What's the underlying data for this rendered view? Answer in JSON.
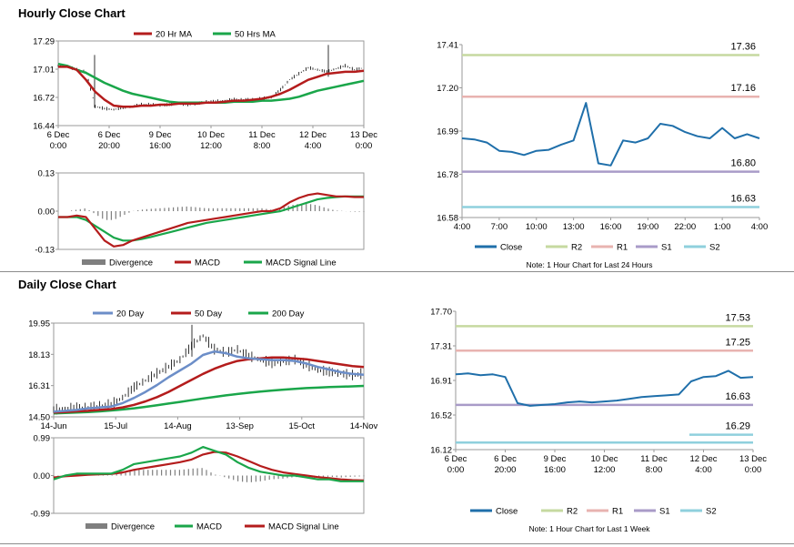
{
  "sections": {
    "hourly_title": "Hourly Close Chart",
    "daily_title": "Daily Close Chart"
  },
  "colors": {
    "ma_red": "#b41c1c",
    "ma_green": "#1aa64a",
    "ma_blue": "#6c8ec8",
    "close_blue": "#1f6faa",
    "r2": "#c6d9a0",
    "r1": "#e8b3b0",
    "s1": "#a99bc8",
    "s2": "#8fd0dd",
    "divergence": "#7f7f7f"
  },
  "chart_data": [
    {
      "id": "hourly_price",
      "type": "candlestick_line",
      "legend": [
        "20 Hr MA",
        "50 Hrs MA"
      ],
      "ylim": [
        16.44,
        17.29
      ],
      "yticks": [
        "17.29",
        "17.01",
        "16.72",
        "16.44"
      ],
      "xticks": [
        [
          "6 Dec",
          "0:00"
        ],
        [
          "6 Dec",
          "20:00"
        ],
        [
          "9 Dec",
          "16:00"
        ],
        [
          "10 Dec",
          "12:00"
        ],
        [
          "11 Dec",
          "8:00"
        ],
        [
          "12 Dec",
          "4:00"
        ],
        [
          "13 Dec",
          "0:00"
        ]
      ],
      "series": [
        {
          "name": "Close",
          "values": [
            17.04,
            17.03,
            17.0,
            16.98,
            16.63,
            16.61,
            16.6,
            16.62,
            16.63,
            16.65,
            16.65,
            16.64,
            16.65,
            16.66,
            16.65,
            16.66,
            16.68,
            16.68,
            16.69,
            16.7,
            16.7,
            16.7,
            16.71,
            16.72,
            16.8,
            16.9,
            16.96,
            17.02,
            17.0,
            16.98,
            17.01,
            17.04,
            17.0,
            17.02
          ]
        },
        {
          "name": "20 Hr MA",
          "values": [
            17.03,
            17.03,
            17.0,
            16.9,
            16.78,
            16.7,
            16.64,
            16.63,
            16.63,
            16.64,
            16.64,
            16.65,
            16.65,
            16.66,
            16.66,
            16.66,
            16.67,
            16.67,
            16.68,
            16.69,
            16.69,
            16.7,
            16.71,
            16.73,
            16.76,
            16.8,
            16.85,
            16.9,
            16.93,
            16.96,
            16.97,
            16.98,
            16.98,
            16.99
          ]
        },
        {
          "name": "50 Hrs MA",
          "values": [
            17.06,
            17.04,
            17.0,
            16.97,
            16.92,
            16.87,
            16.83,
            16.79,
            16.76,
            16.74,
            16.72,
            16.7,
            16.68,
            16.67,
            16.67,
            16.67,
            16.67,
            16.67,
            16.67,
            16.68,
            16.68,
            16.68,
            16.69,
            16.69,
            16.7,
            16.71,
            16.73,
            16.76,
            16.79,
            16.81,
            16.83,
            16.85,
            16.87,
            16.89
          ]
        }
      ]
    },
    {
      "id": "hourly_macd",
      "type": "macd",
      "legend": [
        "Divergence",
        "MACD",
        "MACD Signal Line"
      ],
      "ylim": [
        -0.13,
        0.13
      ],
      "yticks": [
        "0.13",
        "0.00",
        "-0.13"
      ],
      "series": [
        {
          "name": "MACD",
          "values": [
            -0.02,
            -0.02,
            -0.015,
            -0.02,
            -0.06,
            -0.1,
            -0.12,
            -0.115,
            -0.1,
            -0.09,
            -0.08,
            -0.07,
            -0.06,
            -0.05,
            -0.04,
            -0.035,
            -0.03,
            -0.025,
            -0.02,
            -0.015,
            -0.01,
            -0.005,
            0.0,
            0.0,
            0.01,
            0.03,
            0.045,
            0.055,
            0.06,
            0.055,
            0.05,
            0.05,
            0.048,
            0.048
          ]
        },
        {
          "name": "MACD Signal Line",
          "values": [
            -0.02,
            -0.02,
            -0.02,
            -0.03,
            -0.05,
            -0.07,
            -0.09,
            -0.1,
            -0.1,
            -0.095,
            -0.088,
            -0.08,
            -0.072,
            -0.064,
            -0.056,
            -0.048,
            -0.04,
            -0.035,
            -0.03,
            -0.025,
            -0.02,
            -0.015,
            -0.01,
            -0.005,
            0.0,
            0.01,
            0.02,
            0.03,
            0.04,
            0.045,
            0.048,
            0.05,
            0.05,
            0.05
          ]
        }
      ]
    },
    {
      "id": "hourly_pivot",
      "type": "line",
      "note": "Note: 1 Hour Chart for Last 24 Hours",
      "ylim": [
        16.58,
        17.41
      ],
      "yticks": [
        "17.41",
        "17.20",
        "16.99",
        "16.78",
        "16.58"
      ],
      "xticks": [
        "4:00",
        "7:00",
        "10:00",
        "13:00",
        "16:00",
        "19:00",
        "22:00",
        "1:00",
        "4:00"
      ],
      "legend": [
        "Close",
        "R2",
        "R1",
        "S1",
        "S2"
      ],
      "levels": {
        "R2": 17.36,
        "R1": 17.16,
        "S1": 16.8,
        "S2": 16.63
      },
      "level_labels": {
        "R2": "17.36",
        "R1": "17.16",
        "S1": "16.80",
        "S2": "16.63"
      },
      "close": [
        16.96,
        16.955,
        16.94,
        16.9,
        16.895,
        16.88,
        16.9,
        16.905,
        16.93,
        16.95,
        17.13,
        16.84,
        16.83,
        16.95,
        16.94,
        16.96,
        17.03,
        17.02,
        16.99,
        16.97,
        16.96,
        17.01,
        16.96,
        16.98,
        16.96
      ]
    },
    {
      "id": "daily_price",
      "type": "candlestick_line",
      "legend": [
        "20 Day",
        "50 Day",
        "200 Day"
      ],
      "ylim": [
        14.5,
        19.95
      ],
      "yticks": [
        "19.95",
        "18.13",
        "16.31",
        "14.50"
      ],
      "xticks": [
        "14-Jun",
        "15-Jul",
        "14-Aug",
        "13-Sep",
        "15-Oct",
        "14-Nov"
      ],
      "series": [
        {
          "name": "Close",
          "values": [
            14.9,
            14.95,
            15.0,
            15.05,
            15.1,
            15.2,
            15.6,
            16.2,
            16.6,
            17.0,
            17.4,
            17.8,
            18.6,
            19.2,
            18.4,
            18.2,
            18.4,
            18.0,
            17.8,
            17.6,
            17.7,
            17.8,
            17.5,
            17.2,
            17.1,
            17.0,
            16.9,
            17.0
          ]
        },
        {
          "name": "20 Day",
          "values": [
            14.8,
            14.85,
            14.9,
            15.0,
            15.05,
            15.1,
            15.3,
            15.6,
            15.95,
            16.35,
            16.8,
            17.2,
            17.6,
            18.1,
            18.3,
            18.2,
            18.0,
            17.9,
            17.85,
            17.8,
            17.8,
            17.75,
            17.6,
            17.4,
            17.25,
            17.1,
            17.0,
            16.95
          ]
        },
        {
          "name": "50 Day",
          "values": [
            14.75,
            14.78,
            14.82,
            14.85,
            14.9,
            14.95,
            15.05,
            15.2,
            15.4,
            15.65,
            15.95,
            16.3,
            16.65,
            17.0,
            17.3,
            17.55,
            17.75,
            17.85,
            17.9,
            17.95,
            17.95,
            17.9,
            17.85,
            17.75,
            17.65,
            17.55,
            17.45,
            17.4
          ]
        },
        {
          "name": "200 Day",
          "values": [
            14.7,
            14.72,
            14.75,
            14.78,
            14.82,
            14.87,
            14.93,
            15.0,
            15.08,
            15.17,
            15.27,
            15.37,
            15.47,
            15.57,
            15.66,
            15.75,
            15.83,
            15.9,
            15.97,
            16.03,
            16.08,
            16.13,
            16.17,
            16.2,
            16.23,
            16.25,
            16.27,
            16.3
          ]
        }
      ]
    },
    {
      "id": "daily_macd",
      "type": "macd",
      "legend": [
        "Divergence",
        "MACD",
        "MACD Signal Line"
      ],
      "ylim": [
        -0.99,
        0.99
      ],
      "yticks": [
        "0.99",
        "0.00",
        "-0.99"
      ],
      "series": [
        {
          "name": "MACD",
          "values": [
            -0.1,
            0.0,
            0.05,
            0.05,
            0.05,
            0.05,
            0.15,
            0.3,
            0.35,
            0.4,
            0.45,
            0.5,
            0.6,
            0.75,
            0.65,
            0.55,
            0.35,
            0.2,
            0.1,
            0.05,
            0.0,
            0.0,
            -0.05,
            -0.1,
            -0.1,
            -0.15,
            -0.15,
            -0.15
          ]
        },
        {
          "name": "MACD Signal Line",
          "values": [
            -0.05,
            -0.02,
            0.0,
            0.02,
            0.03,
            0.04,
            0.08,
            0.15,
            0.2,
            0.25,
            0.3,
            0.35,
            0.42,
            0.55,
            0.62,
            0.6,
            0.5,
            0.38,
            0.25,
            0.15,
            0.08,
            0.04,
            0.0,
            -0.04,
            -0.07,
            -0.1,
            -0.12,
            -0.13
          ]
        }
      ]
    },
    {
      "id": "daily_pivot",
      "type": "line",
      "note": "Note: 1 Hour Chart for Last 1 Week",
      "ylim": [
        16.12,
        17.7
      ],
      "yticks": [
        "17.70",
        "17.31",
        "16.91",
        "16.52",
        "16.12"
      ],
      "xticks": [
        [
          "6 Dec",
          "0:00"
        ],
        [
          "6 Dec",
          "20:00"
        ],
        [
          "9 Dec",
          "16:00"
        ],
        [
          "10 Dec",
          "12:00"
        ],
        [
          "11 Dec",
          "8:00"
        ],
        [
          "12 Dec",
          "4:00"
        ],
        [
          "13 Dec",
          "0:00"
        ]
      ],
      "legend": [
        "Close",
        "R2",
        "R1",
        "S1",
        "S2"
      ],
      "levels": {
        "R2": 17.53,
        "R1": 17.25,
        "S1": 16.63,
        "S2": 16.29
      },
      "level_labels": {
        "R2": "17.53",
        "R1": "17.25",
        "S1": "16.63",
        "S2": "16.29"
      },
      "close": [
        16.98,
        16.99,
        16.97,
        16.98,
        16.95,
        16.65,
        16.62,
        16.63,
        16.64,
        16.66,
        16.67,
        16.66,
        16.67,
        16.68,
        16.7,
        16.72,
        16.73,
        16.74,
        16.75,
        16.9,
        16.95,
        16.96,
        17.02,
        16.94,
        16.95
      ]
    }
  ]
}
